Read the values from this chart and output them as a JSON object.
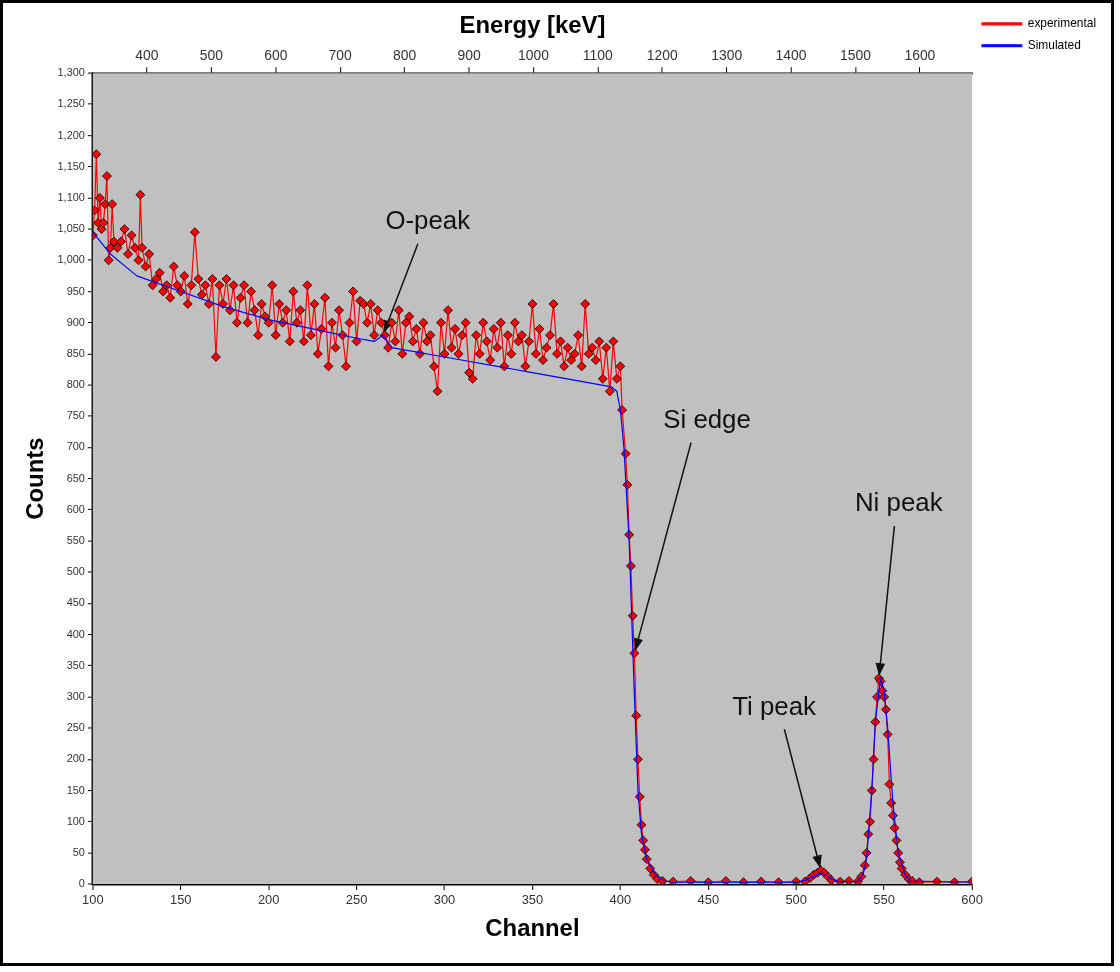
{
  "chart_data": {
    "type": "line",
    "xlabel": "Channel",
    "ylabel": "Counts",
    "x2label": "Energy [keV]",
    "xlim": [
      100,
      600
    ],
    "xticks": [
      100,
      150,
      200,
      250,
      300,
      350,
      400,
      450,
      500,
      550,
      600
    ],
    "x2lim": [
      316,
      1681
    ],
    "x2ticks": [
      400,
      500,
      600,
      700,
      800,
      900,
      1000,
      1100,
      1200,
      1300,
      1400,
      1500,
      1600
    ],
    "ylim": [
      0,
      1300
    ],
    "yticks": [
      0,
      50,
      100,
      150,
      200,
      250,
      300,
      350,
      400,
      450,
      500,
      550,
      600,
      650,
      700,
      750,
      800,
      850,
      900,
      950,
      {
        "value": 1000,
        "label": "1,000"
      },
      {
        "value": 1050,
        "label": "1,050"
      },
      {
        "value": 1100,
        "label": "1,100"
      },
      {
        "value": 1150,
        "label": "1,150"
      },
      {
        "value": 1200,
        "label": "1,200"
      },
      {
        "value": 1250,
        "label": "1,250"
      },
      {
        "value": 1300,
        "label": "1,300"
      }
    ],
    "grid": false,
    "legend": "top right",
    "line_style": "solid",
    "series": [
      {
        "name": "experimental",
        "color": "#ff0000",
        "marker": "diamond",
        "x": [
          100,
          101,
          102,
          103,
          104,
          105,
          106,
          107,
          108,
          109,
          110,
          111,
          112,
          114,
          116,
          118,
          120,
          122,
          124,
          126,
          127,
          128,
          130,
          132,
          134,
          136,
          138,
          140,
          142,
          144,
          146,
          148,
          150,
          152,
          154,
          156,
          158,
          160,
          162,
          164,
          166,
          168,
          170,
          172,
          174,
          176,
          178,
          180,
          182,
          184,
          186,
          188,
          190,
          192,
          194,
          196,
          198,
          200,
          202,
          204,
          206,
          208,
          210,
          212,
          214,
          216,
          218,
          220,
          222,
          224,
          226,
          228,
          230,
          232,
          234,
          236,
          238,
          240,
          242,
          244,
          246,
          248,
          250,
          252,
          254,
          256,
          258,
          260,
          262,
          264,
          266,
          268,
          270,
          272,
          274,
          276,
          278,
          280,
          282,
          284,
          286,
          288,
          290,
          292,
          294,
          296,
          298,
          300,
          302,
          304,
          306,
          308,
          310,
          312,
          314,
          316,
          318,
          320,
          322,
          324,
          326,
          328,
          330,
          332,
          334,
          336,
          338,
          340,
          342,
          344,
          346,
          348,
          350,
          352,
          354,
          356,
          358,
          360,
          362,
          364,
          366,
          368,
          370,
          372,
          374,
          376,
          378,
          380,
          382,
          384,
          386,
          388,
          390,
          392,
          394,
          396,
          398,
          400,
          401,
          403,
          404,
          405,
          406,
          407,
          408,
          409,
          410,
          411,
          412,
          413,
          414,
          415,
          417,
          419,
          421,
          424,
          430,
          440,
          450,
          460,
          470,
          480,
          490,
          500,
          505,
          508,
          510,
          512,
          514,
          516,
          518,
          520,
          525,
          530,
          535,
          537,
          539,
          540,
          541,
          542,
          543,
          544,
          545,
          546,
          547,
          548,
          549,
          550,
          551,
          552,
          553,
          554,
          555,
          556,
          557,
          558,
          559,
          560,
          562,
          564,
          566,
          570,
          580,
          590,
          600
        ],
        "values": [
          1040,
          1080,
          1170,
          1060,
          1100,
          1050,
          1060,
          1090,
          1135,
          1000,
          1020,
          1090,
          1030,
          1020,
          1030,
          1050,
          1010,
          1040,
          1020,
          1000,
          1105,
          1020,
          990,
          1010,
          960,
          970,
          980,
          950,
          960,
          940,
          990,
          960,
          950,
          975,
          930,
          960,
          1045,
          970,
          945,
          960,
          930,
          970,
          845,
          960,
          930,
          970,
          920,
          960,
          900,
          940,
          960,
          900,
          950,
          920,
          880,
          930,
          910,
          900,
          960,
          880,
          930,
          900,
          920,
          870,
          950,
          900,
          920,
          870,
          960,
          880,
          930,
          850,
          890,
          940,
          830,
          900,
          860,
          920,
          880,
          830,
          900,
          950,
          870,
          935,
          930,
          900,
          930,
          880,
          920,
          900,
          880,
          860,
          900,
          870,
          920,
          850,
          900,
          910,
          870,
          890,
          850,
          900,
          870,
          880,
          830,
          790,
          900,
          850,
          920,
          860,
          890,
          850,
          880,
          900,
          820,
          810,
          880,
          850,
          900,
          870,
          840,
          890,
          860,
          900,
          830,
          880,
          850,
          900,
          870,
          880,
          830,
          870,
          930,
          850,
          890,
          840,
          860,
          880,
          930,
          850,
          870,
          830,
          860,
          840,
          850,
          880,
          830,
          930,
          850,
          860,
          840,
          870,
          810,
          860,
          790,
          870,
          810,
          830,
          760,
          690,
          640,
          560,
          510,
          430,
          370,
          270,
          200,
          140,
          95,
          70,
          55,
          40,
          25,
          15,
          8,
          5,
          4,
          5,
          3,
          5,
          3,
          4,
          3,
          4,
          4,
          10,
          15,
          18,
          22,
          18,
          12,
          6,
          4,
          5,
          4,
          12,
          30,
          50,
          80,
          100,
          150,
          200,
          260,
          300,
          330,
          325,
          310,
          300,
          280,
          240,
          160,
          130,
          110,
          90,
          70,
          50,
          35,
          25,
          15,
          8,
          5,
          3,
          4,
          3,
          4
        ]
      },
      {
        "name": "Simulated",
        "color": "#0000ff",
        "marker": "none",
        "x": [
          100,
          110,
          125,
          150,
          175,
          200,
          225,
          250,
          260,
          265,
          270,
          300,
          350,
          395,
          398,
          400,
          402,
          405,
          408,
          410,
          412,
          415,
          420,
          425,
          430,
          500,
          505,
          510,
          515,
          520,
          525,
          535,
          538,
          540,
          543,
          545,
          548,
          550,
          552,
          555,
          558,
          562,
          565,
          600
        ],
        "values": [
          1045,
          1010,
          975,
          950,
          925,
          905,
          890,
          875,
          870,
          880,
          860,
          845,
          820,
          797,
          790,
          760,
          700,
          550,
          300,
          150,
          80,
          40,
          15,
          5,
          3,
          3,
          6,
          12,
          18,
          8,
          4,
          4,
          15,
          40,
          150,
          260,
          330,
          310,
          250,
          130,
          50,
          15,
          5,
          3
        ]
      }
    ],
    "annotations": [
      {
        "text": "O-peak",
        "x": 265,
        "y": 880
      },
      {
        "text": "Si edge",
        "x": 408,
        "y": 370
      },
      {
        "text": "Ti peak",
        "x": 514,
        "y": 22
      },
      {
        "text": "Ni peak",
        "x": 547,
        "y": 330
      }
    ]
  }
}
